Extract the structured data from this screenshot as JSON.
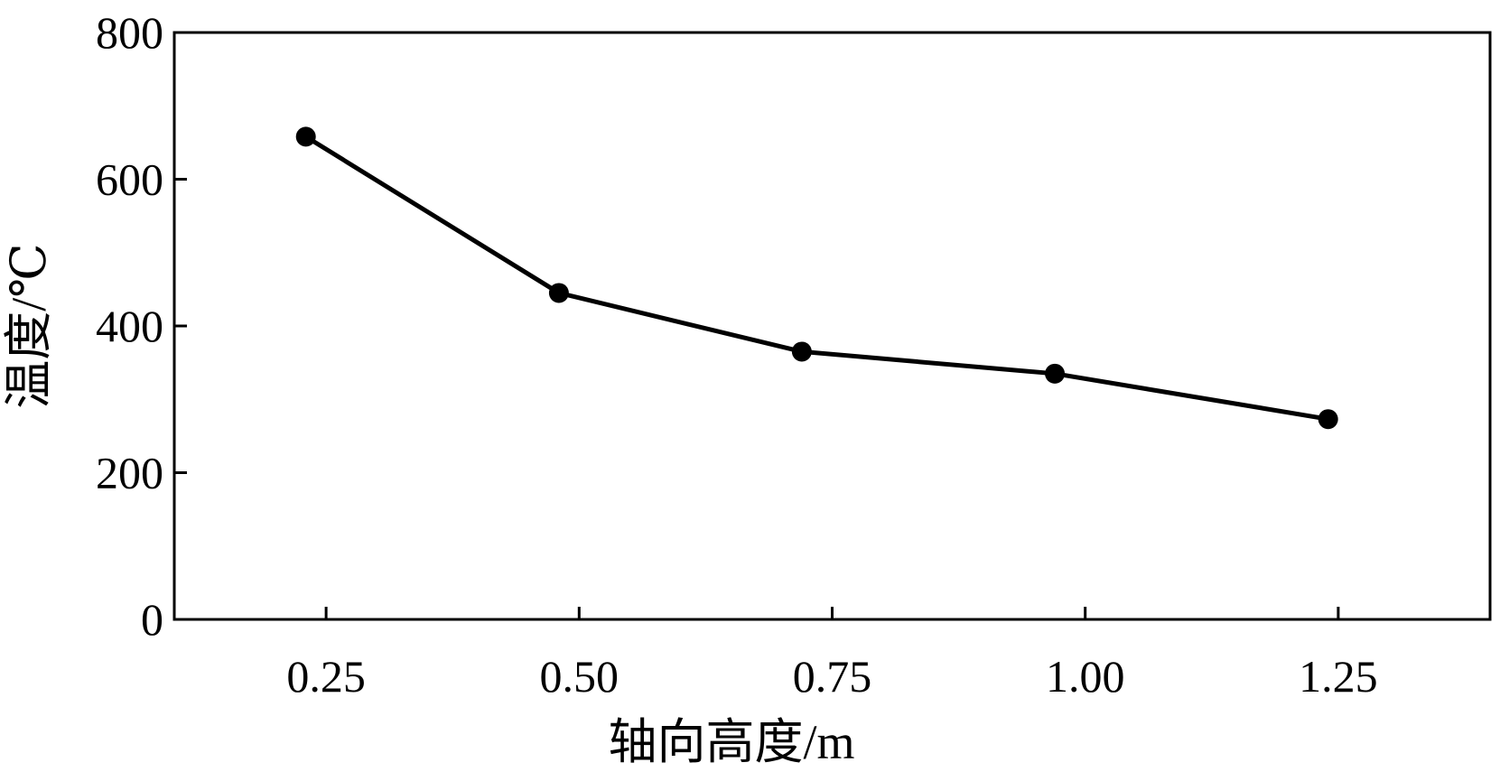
{
  "chart_data": {
    "type": "line",
    "title": "",
    "xlabel": "轴向高度/m",
    "ylabel": "温度/℃",
    "xlim": [
      0.1,
      1.4
    ],
    "ylim": [
      0,
      800
    ],
    "x_ticks": [
      0.25,
      0.5,
      0.75,
      1.0,
      1.25
    ],
    "x_tick_labels": [
      "0.25",
      "0.50",
      "0.75",
      "1.00",
      "1.25"
    ],
    "y_ticks": [
      0,
      200,
      400,
      600,
      800
    ],
    "y_tick_labels": [
      "0",
      "200",
      "400",
      "600",
      "800"
    ],
    "grid": false,
    "series": [
      {
        "x": [
          0.23,
          0.48,
          0.72,
          0.97,
          1.24
        ],
        "values": [
          658,
          445,
          365,
          335,
          273
        ]
      }
    ],
    "colors": {
      "line": "#000000",
      "marker": "#000000",
      "axis": "#000000"
    }
  }
}
